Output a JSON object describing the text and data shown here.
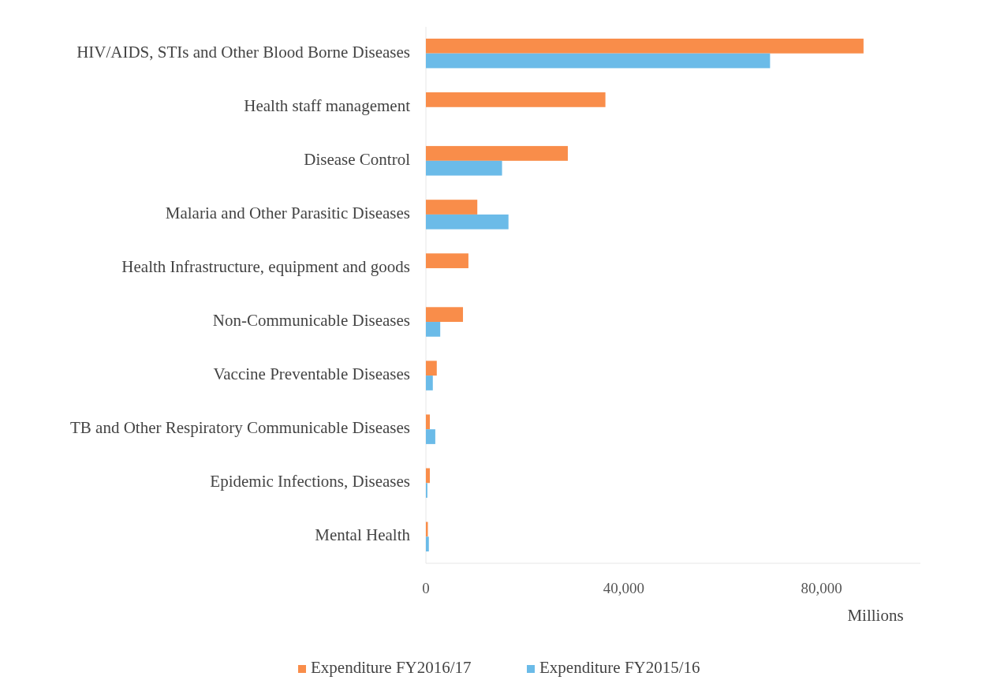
{
  "chart_data": {
    "type": "bar",
    "orientation": "horizontal",
    "xlabel": "Millions",
    "categories": [
      "HIV/AIDS, STIs and Other Blood Borne Diseases",
      "Health staff management",
      "Disease Control",
      "Malaria and Other Parasitic Diseases",
      "Health Infrastructure, equipment and goods",
      "Non-Communicable Diseases",
      "Vaccine Preventable Diseases",
      "TB and Other Respiratory Communicable Diseases",
      "Epidemic Infections, Diseases",
      "Mental Health"
    ],
    "series": [
      {
        "name": "Expenditure FY2016/17",
        "color": "#f98d4a",
        "values": [
          88500,
          36300,
          28700,
          10400,
          8600,
          7500,
          2200,
          800,
          800,
          400
        ]
      },
      {
        "name": "Expenditure FY2015/16",
        "color": "#6bbbe8",
        "values": [
          69600,
          null,
          15400,
          16700,
          null,
          2900,
          1400,
          1900,
          300,
          600
        ]
      }
    ],
    "xlim": [
      0,
      100000
    ],
    "xticks": [
      0,
      {
        "value": 40000,
        "label": "40,000"
      },
      {
        "value": 80000,
        "label": "80,000"
      }
    ],
    "legend": "bottom",
    "grid": false
  }
}
